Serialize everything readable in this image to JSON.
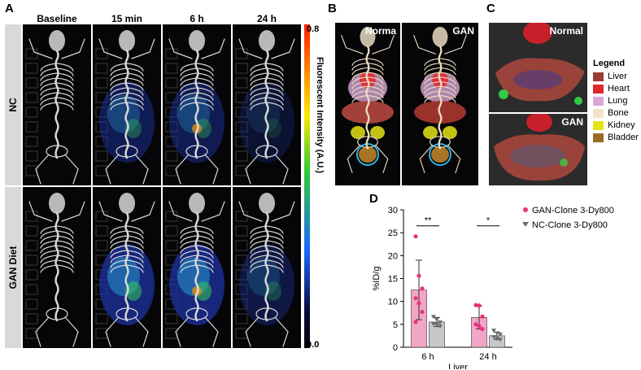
{
  "panels": {
    "a": "A",
    "b": "B",
    "c": "C",
    "d": "D"
  },
  "panel_a": {
    "timepoints": [
      "Baseline",
      "15 min",
      "6 h",
      "24 h"
    ],
    "rows": [
      "NC",
      "GAN Diet"
    ],
    "colorbar": {
      "max": "0.8",
      "min": "0.0",
      "label": "Fluorescent Intensity (A.U.)"
    }
  },
  "panel_b": {
    "labels": [
      "Norma",
      "GAN"
    ]
  },
  "panel_c": {
    "labels": [
      "Normal",
      "GAN"
    ]
  },
  "organ_legend": {
    "title": "Legend",
    "items": [
      {
        "label": "Liver",
        "color": "#9b3b35"
      },
      {
        "label": "Heart",
        "color": "#e0282c"
      },
      {
        "label": "Lung",
        "color": "#d9a6d6"
      },
      {
        "label": "Bone",
        "color": "#f2e3c9"
      },
      {
        "label": "Kidney",
        "color": "#e4e417"
      },
      {
        "label": "Bladder",
        "color": "#9c6b2a"
      }
    ]
  },
  "chart_data": {
    "type": "bar",
    "categories": [
      "6 h",
      "24 h"
    ],
    "xlabel": "Liver",
    "ylabel": "%ID/g",
    "ylim": [
      0,
      30
    ],
    "yticks": [
      0,
      5,
      10,
      15,
      20,
      25,
      30
    ],
    "series": [
      {
        "name": "GAN-Clone 3-Dy800",
        "color": "#e8337a",
        "bar_color": "#f2a6c6",
        "values": [
          12.5,
          6.5
        ],
        "error": [
          6.5,
          2.5
        ],
        "points": [
          [
            24.2,
            15.6,
            12.8,
            10.7,
            9.6,
            7.7,
            5.5
          ],
          [
            9.2,
            9.1,
            6.7,
            5.0,
            4.6,
            4.0
          ]
        ]
      },
      {
        "name": "NC-Clone 3-Dy800",
        "color": "#6b6b6b",
        "bar_color": "#c8c8c8",
        "values": [
          5.5,
          2.5
        ],
        "error": [
          1.0,
          0.8
        ],
        "points": [
          [
            6.6,
            6.0,
            5.4,
            5.0,
            4.9,
            4.5
          ],
          [
            3.6,
            3.0,
            2.7,
            2.2,
            1.8,
            1.6
          ]
        ]
      }
    ],
    "significance": [
      "**",
      "*"
    ]
  }
}
